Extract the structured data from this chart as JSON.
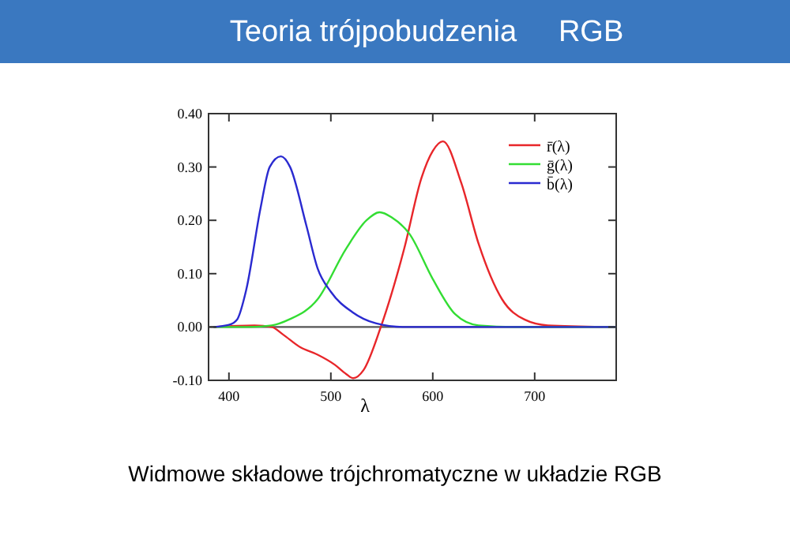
{
  "chart_data": {
    "type": "line",
    "title": "Teoria trójpobudzenia     RGB",
    "xlabel": "λ",
    "xlim": [
      380,
      780
    ],
    "xticks": [
      400,
      500,
      600,
      700
    ],
    "ylim": [
      -0.1,
      0.4
    ],
    "yticks": [
      {
        "value": -0.1,
        "label": "-0.10"
      },
      {
        "value": 0,
        "label": "0.00"
      },
      {
        "value": 0.1,
        "label": "0.10"
      },
      {
        "value": 0.2,
        "label": "0.20"
      },
      {
        "value": 0.3,
        "label": "0.30"
      },
      {
        "value": 0.4,
        "label": "0.40"
      }
    ],
    "series": [
      {
        "name": "r̄(λ)",
        "color": "#e8262a",
        "x": [
          385,
          425,
          442,
          453,
          470,
          487,
          504,
          515,
          522,
          532,
          549,
          572,
          589,
          600,
          610,
          628,
          645,
          668,
          690,
          713,
          780
        ],
        "values": [
          0,
          0.003,
          0,
          -0.014,
          -0.038,
          -0.052,
          -0.071,
          -0.088,
          -0.096,
          -0.081,
          0,
          0.147,
          0.28,
          0.33,
          0.348,
          0.27,
          0.156,
          0.052,
          0.014,
          0.003,
          0
        ]
      },
      {
        "name": "ḡ(λ)",
        "color": "#33dd33",
        "x": [
          385,
          420,
          442,
          459,
          487,
          515,
          535,
          548,
          560,
          577,
          600,
          622,
          645,
          680,
          780
        ],
        "values": [
          0,
          0,
          0.003,
          0.014,
          0.052,
          0.147,
          0.2,
          0.215,
          0.205,
          0.175,
          0.09,
          0.024,
          0.003,
          0,
          0
        ]
      },
      {
        "name": "b̄(λ)",
        "color": "#2a2ad0",
        "x": [
          385,
          400,
          408,
          417,
          431,
          440,
          451,
          460,
          476,
          487,
          500,
          521,
          544,
          572,
          780
        ],
        "values": [
          0,
          0.004,
          0.014,
          0.07,
          0.223,
          0.3,
          0.32,
          0.3,
          0.19,
          0.11,
          0.066,
          0.028,
          0.007,
          0,
          0
        ]
      }
    ],
    "ref_lines": [
      {
        "axis": "y",
        "value": 0,
        "color": "#555555"
      }
    ],
    "legend": "top right",
    "grid": false,
    "marker": "none",
    "line_style": "solid",
    "annotations": [
      "Widmowe składowe trójchromatyczne w układzie RGB"
    ]
  }
}
